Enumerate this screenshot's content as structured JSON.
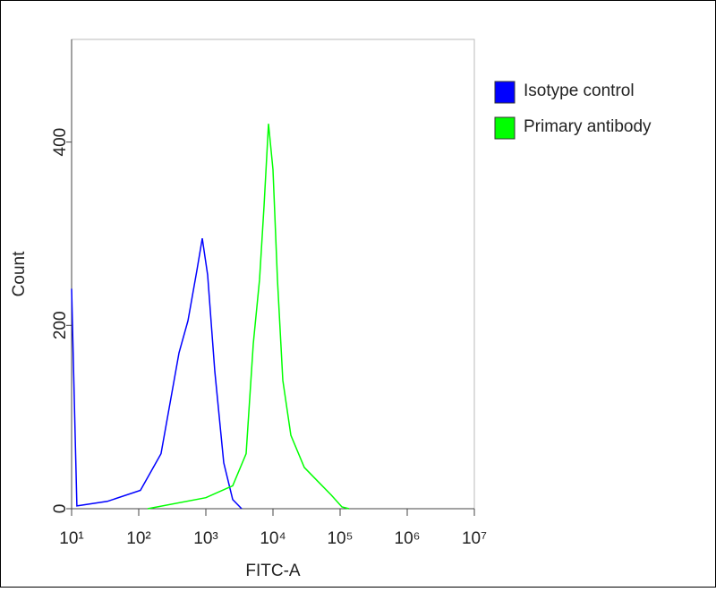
{
  "chart_data": {
    "type": "line",
    "xlabel": "FITC-A",
    "ylabel": "Count",
    "xscale": "log",
    "xlim": [
      10,
      10000000
    ],
    "xticks": [
      {
        "value": 10,
        "label": "10¹"
      },
      {
        "value": 100,
        "label": "10²"
      },
      {
        "value": 1000,
        "label": "10³"
      },
      {
        "value": 10000,
        "label": "10⁴"
      },
      {
        "value": 100000,
        "label": "10⁵"
      },
      {
        "value": 1000000,
        "label": "10⁶"
      },
      {
        "value": 10000000,
        "label": "10⁷"
      }
    ],
    "ylim": [
      0,
      512
    ],
    "yticks": [
      0,
      200,
      400
    ],
    "legend": "right",
    "series": [
      {
        "name": "Isotype control",
        "color": "#0000ff",
        "x": [
          10,
          12,
          34,
          106,
          215,
          398,
          541,
          736,
          885,
          1064,
          1359,
          1848,
          2512,
          3415
        ],
        "values": [
          240,
          3,
          8,
          20,
          60,
          170,
          205,
          260,
          295,
          255,
          150,
          50,
          10,
          0
        ]
      },
      {
        "name": "Primary antibody",
        "color": "#00ff00",
        "x": [
          136,
          1000,
          2512,
          3981,
          5093,
          6310,
          7356,
          8577,
          10000,
          11660,
          14020,
          18480,
          29290,
          46420,
          73560,
          106300,
          135900
        ],
        "values": [
          0,
          12,
          25,
          60,
          180,
          250,
          330,
          420,
          370,
          250,
          140,
          80,
          45,
          30,
          15,
          2,
          0
        ]
      }
    ]
  }
}
